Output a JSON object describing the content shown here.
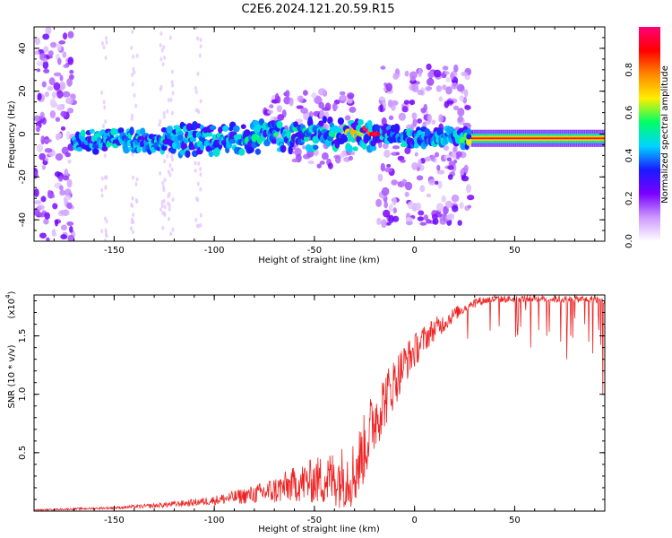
{
  "chart_data": [
    {
      "type": "heatmap",
      "title": "C2E6.2024.121.20.59.R15",
      "xlabel": "Height of straight line (km)",
      "ylabel": "Frequency (Hz)",
      "xlim": [
        -190,
        95
      ],
      "ylim": [
        -50,
        50
      ],
      "xticks": [
        "-150",
        "-100",
        "-50",
        "0",
        "50"
      ],
      "yticks": [
        "-40",
        "-20",
        "0",
        "20",
        "40"
      ],
      "colorbar": {
        "label": "Normalized spectral amplitude",
        "range": [
          0,
          1
        ],
        "ticks": [
          "0.0",
          "0.2",
          "0.4",
          "0.6",
          "0.8"
        ],
        "colors": [
          "#ffffff",
          "#cc99ff",
          "#7a00ff",
          "#1a1aff",
          "#00d5ff",
          "#00ff66",
          "#ffee00",
          "#ff8800",
          "#ff0000",
          "#ff0077"
        ]
      },
      "ridge": {
        "x": [
          -170,
          -150,
          -130,
          -110,
          -90,
          -70,
          -50,
          -35,
          -22,
          -20,
          -10,
          0,
          10,
          20,
          28,
          50,
          95
        ],
        "y": [
          -4,
          -3,
          -3,
          -2.5,
          -2,
          -1,
          0,
          0,
          0,
          -1,
          -1,
          -1.5,
          -1.5,
          -1.5,
          -2,
          -2,
          -2
        ],
        "amplitude": [
          0.35,
          0.45,
          0.45,
          0.45,
          0.45,
          0.5,
          0.45,
          0.55,
          1.0,
          0.3,
          0.35,
          0.4,
          0.4,
          0.4,
          0.7,
          0.85,
          0.85
        ]
      },
      "scatter_regions": [
        {
          "x": [
            -190,
            -170
          ],
          "y": [
            -50,
            50
          ]
        },
        {
          "x": [
            -18,
            28
          ],
          "y": [
            -42,
            32
          ]
        },
        {
          "x": [
            -75,
            -30
          ],
          "y": [
            -15,
            20
          ]
        }
      ]
    },
    {
      "type": "line",
      "xlabel": "Height of straight line (km)",
      "ylabel": "SNR (10 * v/v)",
      "y_multiplier": "(x10",
      "y_multiplier_exp": "4",
      "xlim": [
        -190,
        95
      ],
      "ylim": [
        0,
        1.85
      ],
      "xticks": [
        "-150",
        "-100",
        "-50",
        "0",
        "50"
      ],
      "yticks": [
        "0.5",
        "1.0",
        "1.5"
      ],
      "color": "#ee2222",
      "x": [
        -190,
        -170,
        -150,
        -130,
        -110,
        -100,
        -90,
        -80,
        -70,
        -60,
        -50,
        -40,
        -30,
        -25,
        -20,
        -15,
        -10,
        -5,
        0,
        5,
        10,
        15,
        20,
        25,
        30,
        40,
        50,
        60,
        70,
        80,
        90,
        95
      ],
      "y": [
        0.01,
        0.02,
        0.03,
        0.05,
        0.08,
        0.1,
        0.13,
        0.16,
        0.2,
        0.26,
        0.3,
        0.33,
        0.38,
        0.6,
        0.85,
        1.0,
        1.15,
        1.3,
        1.4,
        1.5,
        1.58,
        1.63,
        1.7,
        1.75,
        1.8,
        1.82,
        1.82,
        1.83,
        1.82,
        1.82,
        1.82,
        1.8
      ],
      "noise": [
        0.005,
        0.008,
        0.01,
        0.02,
        0.03,
        0.04,
        0.06,
        0.08,
        0.12,
        0.15,
        0.2,
        0.25,
        0.3,
        0.3,
        0.3,
        0.25,
        0.22,
        0.18,
        0.15,
        0.12,
        0.1,
        0.08,
        0.06,
        0.05,
        0.04,
        0.03,
        0.03,
        0.03,
        0.03,
        0.03,
        0.03,
        0.03
      ],
      "dips": [
        {
          "x": 58,
          "y": 1.4
        },
        {
          "x": 62,
          "y": 1.55
        },
        {
          "x": 66,
          "y": 1.5
        },
        {
          "x": 73,
          "y": 1.45
        },
        {
          "x": 76,
          "y": 1.3
        },
        {
          "x": 78,
          "y": 1.5
        },
        {
          "x": 80,
          "y": 1.65
        },
        {
          "x": 85,
          "y": 1.6
        },
        {
          "x": 87,
          "y": 1.45
        },
        {
          "x": 89,
          "y": 1.35
        },
        {
          "x": 92,
          "y": 1.55
        },
        {
          "x": 94,
          "y": 1.0
        }
      ]
    }
  ]
}
